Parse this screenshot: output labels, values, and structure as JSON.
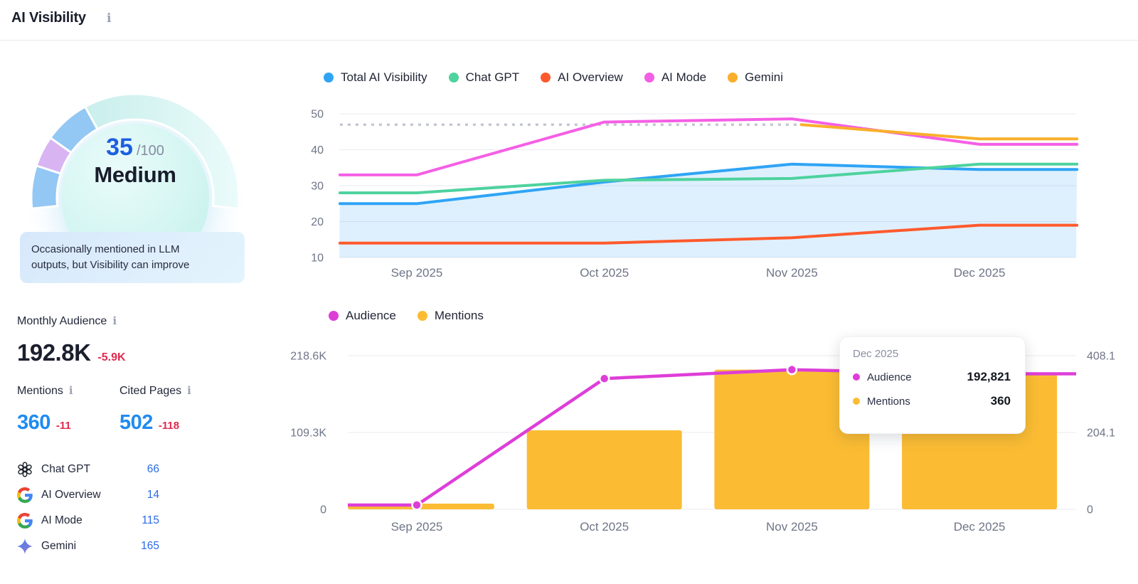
{
  "header": {
    "title": "AI Visibility"
  },
  "gauge": {
    "score": "35",
    "score_max": "/100",
    "label": "Medium",
    "value": 35,
    "max": 100,
    "description": "Occasionally mentioned in LLM outputs, but Visibility can improve",
    "segments": [
      {
        "from_pct": 0,
        "to_pct": 12.5,
        "color": "#93C7F4"
      },
      {
        "from_pct": 12.5,
        "to_pct": 21.5,
        "color": "#D8B5F2"
      },
      {
        "from_pct": 21.5,
        "to_pct": 35,
        "color": "#93C7F4"
      }
    ],
    "track_colors": [
      "#C9EFEC",
      "#EAFBFA"
    ]
  },
  "stats": {
    "monthly_audience": {
      "label": "Monthly Audience",
      "value": "192.8K",
      "delta": "-5.9K"
    },
    "mentions": {
      "label": "Mentions",
      "value": "360",
      "delta": "-11"
    },
    "cited_pages": {
      "label": "Cited Pages",
      "value": "502",
      "delta": "-118"
    }
  },
  "platforms": [
    {
      "name": "Chat GPT",
      "value": "66",
      "icon": "openai-icon"
    },
    {
      "name": "AI Overview",
      "value": "14",
      "icon": "google-icon"
    },
    {
      "name": "AI Mode",
      "value": "115",
      "icon": "google-icon"
    },
    {
      "name": "Gemini",
      "value": "165",
      "icon": "gemini-icon"
    }
  ],
  "tooltip": {
    "title": "Dec 2025",
    "rows": [
      {
        "label": "Audience",
        "value": "192,821",
        "color": "#DE3ED8"
      },
      {
        "label": "Mentions",
        "value": "360",
        "color": "#FBBC34"
      }
    ]
  },
  "chart_data": [
    {
      "type": "line",
      "title": "AI Visibility by platform",
      "categories": [
        "Sep 2025",
        "Oct 2025",
        "Nov 2025",
        "Dec 2025"
      ],
      "ylim": [
        10,
        52
      ],
      "yticks": [
        10,
        20,
        30,
        40,
        50
      ],
      "grid": true,
      "legend_position": "top",
      "series": [
        {
          "name": "Total AI Visibility",
          "color": "#2FA4F5",
          "x": [
            -0.41,
            0,
            1,
            2,
            3,
            3.52
          ],
          "values": [
            25,
            25,
            31,
            36,
            34.5,
            34.5
          ],
          "area": true,
          "area_color": "rgba(47,164,245,0.16)"
        },
        {
          "name": "Chat GPT",
          "color": "#4ED29E",
          "x": [
            -0.41,
            0,
            1,
            2,
            3,
            3.52
          ],
          "values": [
            28,
            28,
            31.5,
            32,
            36,
            36
          ]
        },
        {
          "name": "AI Overview",
          "color": "#FF5A2D",
          "x": [
            -0.41,
            0,
            1,
            2,
            3,
            3.52
          ],
          "values": [
            14,
            14,
            14,
            15.5,
            19,
            19
          ]
        },
        {
          "name": "AI Mode",
          "color": "#F55FE5",
          "x": [
            -0.41,
            0,
            1,
            2,
            3,
            3.52
          ],
          "values": [
            33,
            33,
            47.7,
            48.6,
            41.5,
            41.5
          ]
        },
        {
          "name": "Gemini",
          "color": "#F9AF2B",
          "x": [
            2.05,
            3,
            3.52
          ],
          "values": [
            47,
            43,
            43
          ]
        },
        {
          "name": "Gemini no-data benchmark",
          "color": "#C3C7D1",
          "dashed": true,
          "hide_legend": true,
          "x": [
            -0.41,
            2.05
          ],
          "values": [
            47,
            47
          ]
        }
      ]
    },
    {
      "type": "bar+line",
      "title": "Audience and Mentions by month",
      "categories": [
        "Sep 2025",
        "Oct 2025",
        "Nov 2025",
        "Dec 2025"
      ],
      "left_axis": {
        "ticks": [
          "0",
          "109.3K",
          "218.6K"
        ],
        "tick_values": [
          0,
          109300,
          218600
        ],
        "max": 218600
      },
      "right_axis": {
        "ticks": [
          "0",
          "204.1",
          "408.1"
        ],
        "tick_values": [
          0,
          204.1,
          408.1
        ],
        "max": 408.1
      },
      "legend_position": "top",
      "series": [
        {
          "name": "Audience",
          "type": "line",
          "axis": "left",
          "color": "#DE3ED8",
          "values": [
            6100,
            186000,
            198700,
            192821
          ],
          "markers": true
        },
        {
          "name": "Mentions",
          "type": "bar",
          "axis": "right",
          "color": "#FBBC34",
          "values": [
            15,
            210,
            371,
            360
          ]
        }
      ]
    }
  ]
}
